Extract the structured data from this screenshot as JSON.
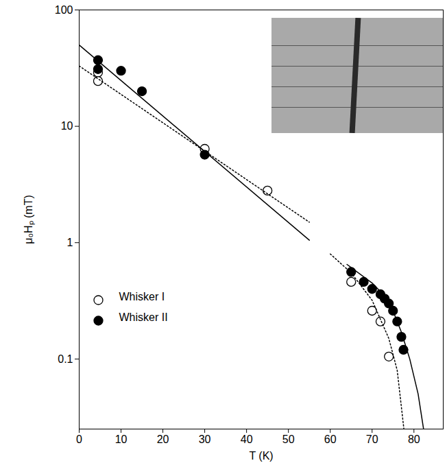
{
  "chart_data": {
    "type": "scatter",
    "x_label": "T (K)",
    "y_label": "μ₀Hₚ (mT)",
    "log": "y",
    "xlim": [
      0,
      87
    ],
    "xticks": [
      0,
      10,
      20,
      30,
      40,
      50,
      60,
      70,
      80
    ],
    "ylim": [
      0.025,
      100
    ],
    "yticks": [
      0.1,
      1,
      10,
      100
    ],
    "legend": "lower left",
    "series": [
      {
        "name": "Whisker I",
        "type": "scatter",
        "marker": "open circle",
        "color": "#000000",
        "x": [
          4.5,
          4.5,
          30,
          45,
          65,
          70,
          72,
          74
        ],
        "values": [
          29,
          24.5,
          6.4,
          2.8,
          0.46,
          0.26,
          0.21,
          0.105
        ]
      },
      {
        "name": "Whisker II",
        "type": "scatter",
        "marker": "filled circle",
        "color": "#000000",
        "x": [
          4.5,
          4.5,
          10,
          15,
          30,
          65,
          68,
          70,
          72,
          73,
          74,
          75,
          76,
          77,
          77.5
        ],
        "values": [
          37,
          31,
          30,
          20,
          5.7,
          0.56,
          0.46,
          0.4,
          0.36,
          0.33,
          0.3,
          0.26,
          0.21,
          0.155,
          0.12
        ]
      },
      {
        "type": "line",
        "line_style": "solid",
        "color": "#000000",
        "x": [
          0,
          55
        ],
        "values": [
          50,
          1.05
        ]
      },
      {
        "type": "line",
        "line_style": "dotted",
        "color": "#000000",
        "x": [
          0,
          55
        ],
        "values": [
          33,
          1.5
        ]
      },
      {
        "type": "line",
        "line_style": "dotted",
        "color": "#000000",
        "x": [
          60,
          65,
          70,
          74,
          76,
          77.6
        ],
        "values": [
          0.8,
          0.55,
          0.32,
          0.15,
          0.08,
          0.025
        ]
      },
      {
        "type": "line",
        "line_style": "solid",
        "color": "#000000",
        "x": [
          64,
          70,
          74,
          77,
          79,
          81,
          82.3
        ],
        "values": [
          0.65,
          0.45,
          0.32,
          0.17,
          0.1,
          0.05,
          0.025
        ]
      }
    ]
  }
}
